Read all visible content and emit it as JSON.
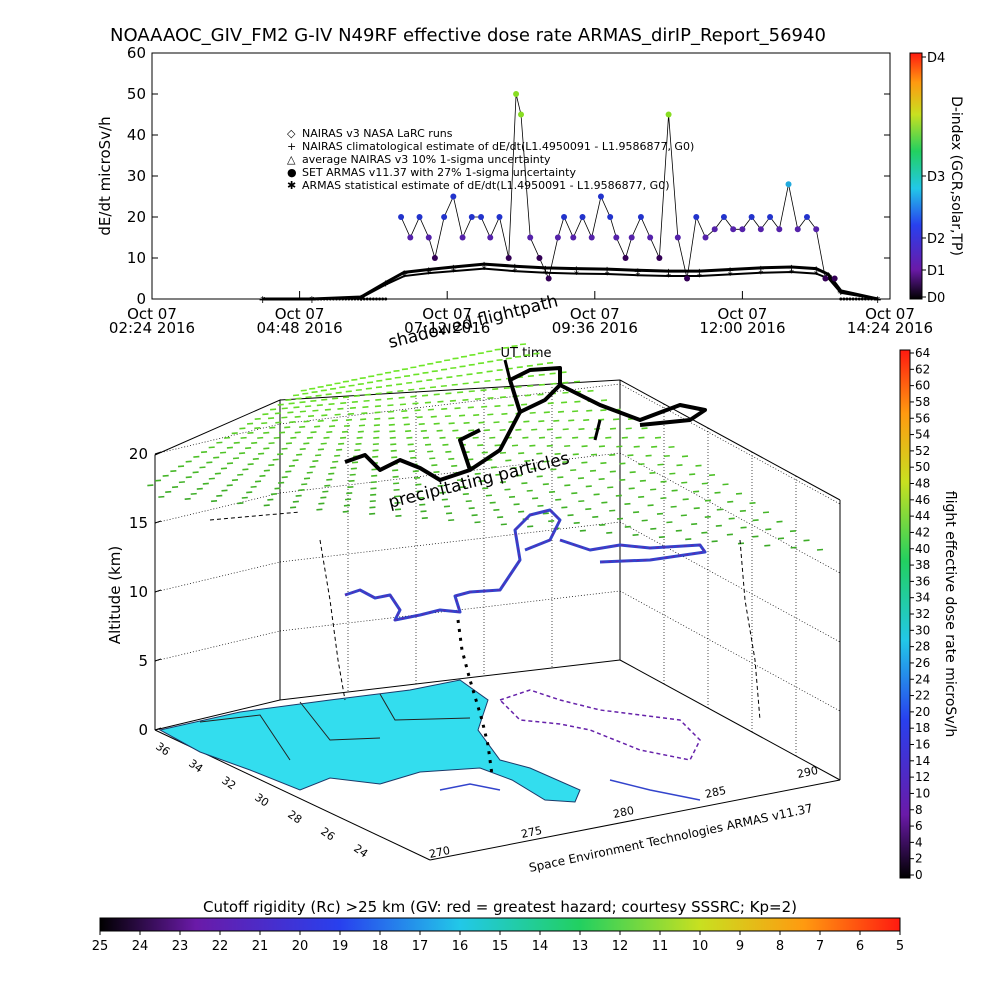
{
  "title": "NOAAAOC_GIV_FM2 G-IV    N49RF   effective dose rate ARMAS_dirIP_Report_56940",
  "chart_data": [
    {
      "type": "scatter",
      "ylabel": "dE/dt microSv/h",
      "xlabel": "UT time",
      "ylim": [
        0,
        60
      ],
      "y_ticks": [
        "0",
        "10",
        "20",
        "30",
        "40",
        "50",
        "60"
      ],
      "x_ticks": [
        {
          "line1": "Oct 07",
          "line2": "02:24 2016"
        },
        {
          "line1": "Oct 07",
          "line2": "04:48 2016"
        },
        {
          "line1": "Oct 07",
          "line2": "07:12 2016"
        },
        {
          "line1": "Oct 07",
          "line2": "09:36 2016"
        },
        {
          "line1": "Oct 07",
          "line2": "12:00 2016"
        },
        {
          "line1": "Oct 07",
          "line2": "14:24 2016"
        }
      ],
      "xlim_hours": [
        2.4,
        14.4
      ],
      "legend": [
        "NAIRAS v3 NASA LaRC runs",
        "NAIRAS climatological estimate of dE/dt(L1.4950091 - L1.9586877, G0)",
        "average NAIRAS v3 10% 1-sigma uncertainty",
        "SET ARMAS v11.37 with 27% 1-sigma uncertainty",
        "ARMAS statistical estimate of dE/dt(L1.4950091 - L1.9586877, G0)"
      ],
      "legend_placement": "upper-left",
      "colorbar": {
        "label": "D-index (GCR,solar,TP)",
        "ticks": [
          "D4",
          "D3",
          "D2",
          "D1",
          "D0"
        ]
      },
      "series": [
        {
          "name": "NAIRAS climatological estimate",
          "x": [
            4.2,
            5.0,
            5.8,
            6.2,
            6.5,
            6.9,
            7.3,
            7.8,
            8.3,
            8.8,
            9.3,
            9.8,
            10.3,
            10.8,
            11.3,
            11.8,
            12.3,
            12.8,
            13.2,
            13.4,
            13.6,
            14.2
          ],
          "y": [
            0,
            0,
            0.5,
            4,
            6.5,
            7.2,
            7.8,
            8.5,
            8,
            7.6,
            7.4,
            7.3,
            7.0,
            6.8,
            6.8,
            7.2,
            7.6,
            7.8,
            7.4,
            6,
            2,
            0
          ]
        },
        {
          "name": "ARMAS statistical estimate",
          "x": [
            4.2,
            5.0,
            5.8,
            6.2,
            6.5,
            6.9,
            7.3,
            7.8,
            8.3,
            8.8,
            9.3,
            9.8,
            10.3,
            10.8,
            11.3,
            11.8,
            12.3,
            12.8,
            13.2,
            13.4,
            13.6,
            14.2
          ],
          "y": [
            0,
            0,
            0.3,
            3.5,
            5.6,
            6.3,
            6.8,
            7.4,
            6.8,
            6.4,
            6.2,
            6.1,
            5.8,
            5.6,
            5.6,
            6.0,
            6.4,
            6.6,
            6.2,
            5,
            1.5,
            0
          ]
        },
        {
          "name": "SET ARMAS v11.37",
          "x": [
            6.45,
            6.6,
            6.75,
            6.9,
            7.0,
            7.15,
            7.3,
            7.45,
            7.6,
            7.75,
            7.9,
            8.05,
            8.2,
            8.32,
            8.4,
            8.55,
            8.7,
            8.85,
            9.0,
            9.1,
            9.25,
            9.4,
            9.55,
            9.7,
            9.85,
            9.95,
            10.1,
            10.2,
            10.35,
            10.5,
            10.65,
            10.8,
            10.95,
            11.1,
            11.25,
            11.4,
            11.55,
            11.7,
            11.85,
            12.0,
            12.15,
            12.3,
            12.45,
            12.6,
            12.75,
            12.9,
            13.05,
            13.2,
            13.35,
            13.5
          ],
          "y": [
            20,
            15,
            20,
            15,
            10,
            20,
            25,
            15,
            20,
            20,
            15,
            20,
            10,
            50,
            45,
            15,
            10,
            5,
            15,
            20,
            15,
            20,
            15,
            25,
            20,
            15,
            10,
            15,
            20,
            15,
            10,
            45,
            15,
            5,
            20,
            15,
            17,
            20,
            17,
            17,
            20,
            17,
            20,
            17,
            28,
            17,
            20,
            17,
            5,
            5
          ]
        }
      ]
    },
    {
      "type": "scatter",
      "zlabel": "Altitude (km)",
      "z_ticks": [
        "0",
        "5",
        "10",
        "15",
        "20"
      ],
      "lat_ticks": [
        "36",
        "34",
        "32",
        "30",
        "28",
        "26",
        "24"
      ],
      "lon_ticks": [
        "270",
        "275",
        "280",
        "285",
        "290"
      ],
      "annotations": [
        "shadowed flightpath",
        "precipitating particles"
      ],
      "credit": "Space Environment Technologies ARMAS v11.37",
      "colorbar": {
        "label": "flight effective dose rate microSv/h",
        "ticks": [
          "64",
          "62",
          "60",
          "58",
          "56",
          "54",
          "52",
          "50",
          "48",
          "46",
          "44",
          "42",
          "40",
          "38",
          "36",
          "34",
          "32",
          "30",
          "28",
          "26",
          "24",
          "22",
          "20",
          "18",
          "16",
          "14",
          "12",
          "10",
          "8",
          "6",
          "4",
          "2",
          "0"
        ]
      },
      "flight_track": {
        "lon": [
          279.5,
          280.0,
          281.0,
          282.5,
          284.0,
          285.5,
          287.0,
          288.5,
          289.0,
          288.0,
          286.0,
          284.0,
          283.0,
          282.0,
          281.5
        ],
        "lat": [
          26.5,
          27.0,
          28.5,
          30.0,
          30.5,
          30.0,
          30.5,
          31.0,
          29.5,
          28.0,
          27.5,
          28.0,
          27.0,
          26.5,
          26.2
        ],
        "alt_km": [
          0,
          3,
          12.5,
          13.5,
          13.5,
          13.0,
          13.0,
          12.5,
          12.0,
          12.0,
          12.5,
          12.5,
          12.0,
          11.0,
          2
        ]
      }
    }
  ],
  "bottom_colorbar": {
    "title": "Cutoff rigidity (Rc) >25 km (GV: red = greatest hazard; courtesy SSSRC; Kp=2)",
    "ticks": [
      "25",
      "24",
      "23",
      "22",
      "21",
      "20",
      "19",
      "18",
      "17",
      "16",
      "15",
      "14",
      "13",
      "12",
      "11",
      "10",
      "9",
      "8",
      "7",
      "6",
      "5"
    ]
  },
  "colors": {
    "map_fill": "#33ddee",
    "grid_green": "#33cc22",
    "track_blue": "#3344cc",
    "track_purple": "#6622aa"
  }
}
